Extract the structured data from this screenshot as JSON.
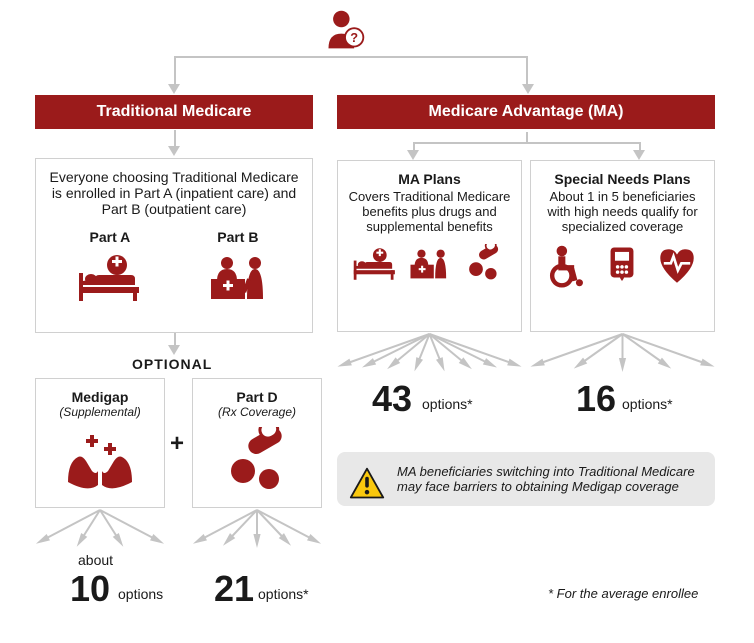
{
  "colors": {
    "brand": "#9b1b1b",
    "line": "#c4c4c4",
    "boxBorder": "#d0d0d0",
    "warnYellow": "#f9c80e",
    "warnBg": "#e8e8e8",
    "text": "#1a1a1a"
  },
  "headers": {
    "left": "Traditional Medicare",
    "right": "Medicare Advantage (MA)"
  },
  "tmBox": {
    "desc": "Everyone choosing Traditional Medicare is enrolled in Part A (inpatient care) and Part B (outpatient care)",
    "partA": "Part A",
    "partB": "Part B"
  },
  "optional": "OPTIONAL",
  "medigap": {
    "title": "Medigap",
    "sub": "(Supplemental)"
  },
  "partD": {
    "title": "Part D",
    "sub": "(Rx Coverage)"
  },
  "plus": "+",
  "maPlans": {
    "title": "MA Plans",
    "desc": "Covers Traditional Medicare benefits plus drugs and supplemental benefits"
  },
  "snPlans": {
    "title": "Special Needs Plans",
    "desc": "About 1 in 5 beneficiaries with high needs qualify for specialized coverage"
  },
  "options": {
    "ma": {
      "num": "43",
      "label": "options*"
    },
    "sn": {
      "num": "16",
      "label": "options*"
    },
    "mg": {
      "about": "about",
      "num": "10",
      "label": "options"
    },
    "pd": {
      "num": "21",
      "label": "options*"
    }
  },
  "warning": "MA beneficiaries switching into Traditional Medicare may face barriers to obtaining Medigap coverage",
  "footnote": "* For the average enrollee",
  "fanArrows": {
    "ma": 8,
    "sn": 5,
    "mg": 4,
    "pd": 5
  }
}
